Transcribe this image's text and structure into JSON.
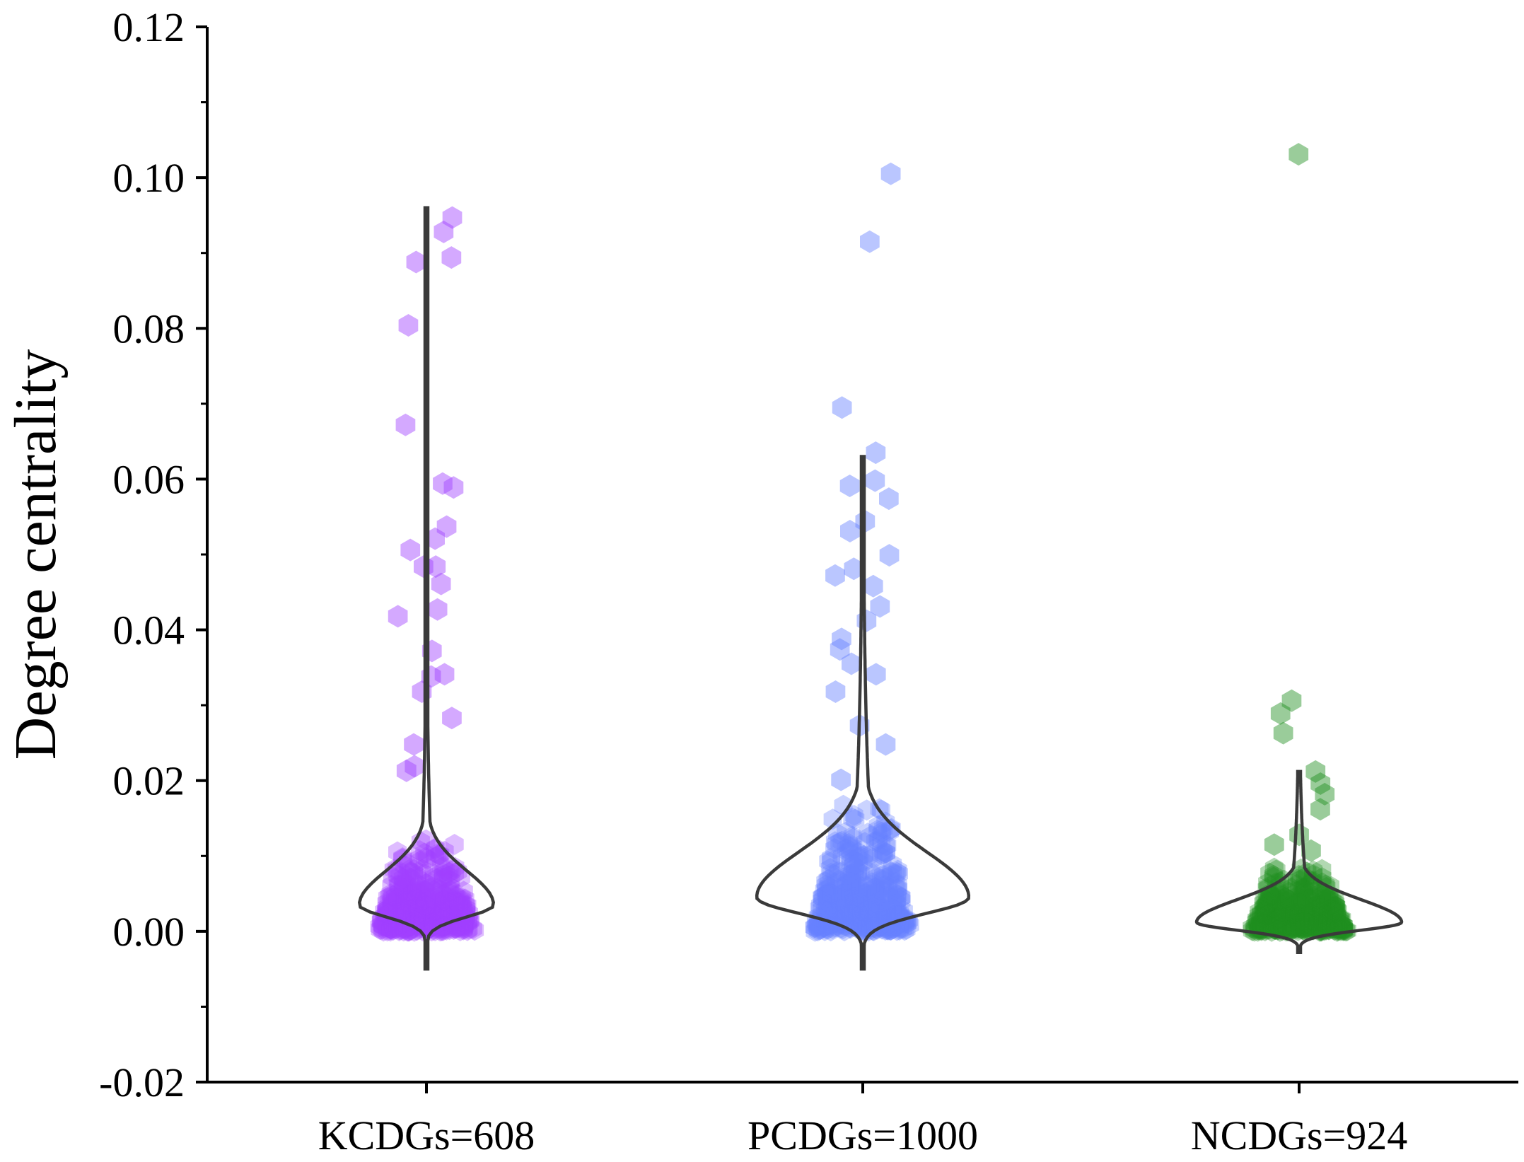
{
  "chart_data": {
    "type": "violin-scatter",
    "title": "",
    "xlabel": "",
    "ylabel": "Degree centrality",
    "ylim": [
      -0.02,
      0.12
    ],
    "yticks": [
      "-0.02",
      "0.00",
      "0.02",
      "0.04",
      "0.06",
      "0.08",
      "0.10",
      "0.12"
    ],
    "ytick_values": [
      -0.02,
      0.0,
      0.02,
      0.04,
      0.06,
      0.08,
      0.1,
      0.12
    ],
    "grid": false,
    "categories": [
      "KCDGs=608",
      "PCDGs=1000",
      "NCDGs=924"
    ],
    "series": [
      {
        "name": "KCDGs",
        "n": 608,
        "color": "#a040ff",
        "violin_max": 0.096,
        "violin_min": -0.005,
        "mode": 0.0035,
        "spread_scale": 0.0045,
        "outliers": [
          0.0947,
          0.0928,
          0.0894,
          0.0888,
          0.0804,
          0.0672,
          0.0594,
          0.0589,
          0.0537,
          0.0521,
          0.0506,
          0.0484,
          0.0484,
          0.0461,
          0.0427,
          0.0418,
          0.0372,
          0.0341,
          0.0338,
          0.0318,
          0.0283,
          0.0248,
          0.0219,
          0.0213
        ]
      },
      {
        "name": "PCDGs",
        "n": 1000,
        "color": "#6680ff",
        "violin_max": 0.063,
        "violin_min": -0.005,
        "mode": 0.0045,
        "spread_scale": 0.006,
        "outliers": [
          0.1005,
          0.0915,
          0.0695,
          0.0635,
          0.0598,
          0.0591,
          0.0574,
          0.0544,
          0.0531,
          0.0499,
          0.0481,
          0.0472,
          0.0458,
          0.0431,
          0.0412,
          0.0388,
          0.0374,
          0.0355,
          0.0341,
          0.0318,
          0.0273,
          0.0248,
          0.0201
        ]
      },
      {
        "name": "NCDGs",
        "n": 924,
        "color": "#1f8f1f",
        "violin_max": 0.0212,
        "violin_min": -0.0028,
        "mode": 0.0012,
        "spread_scale": 0.003,
        "outliers": [
          0.1031,
          0.0306,
          0.0289,
          0.0263,
          0.0212,
          0.0196,
          0.0182,
          0.0162,
          0.0128,
          0.0115,
          0.0107
        ]
      }
    ]
  }
}
